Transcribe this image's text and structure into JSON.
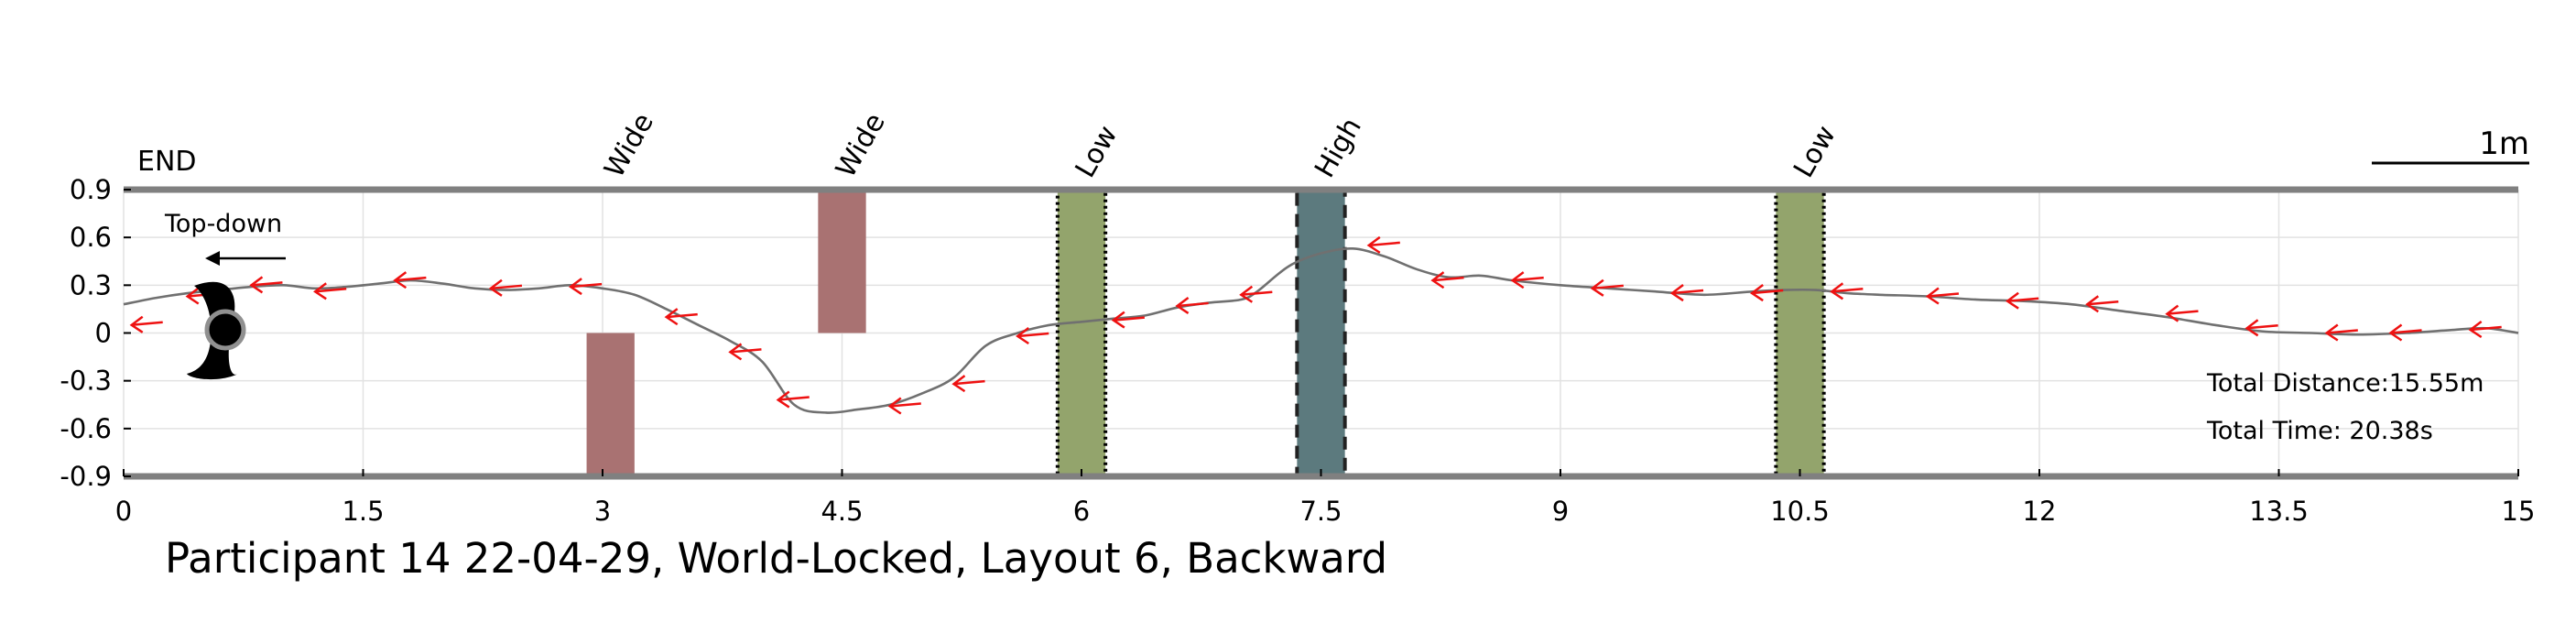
{
  "chart_data": {
    "type": "line",
    "title": "Participant 14 22-04-29, World-Locked, Layout 6, Backward",
    "xlim": [
      0,
      15
    ],
    "ylim": [
      -0.9,
      0.9
    ],
    "xticks": [
      "0",
      "1.5",
      "3",
      "4.5",
      "6",
      "7.5",
      "9",
      "10.5",
      "12",
      "13.5",
      "15"
    ],
    "xtick_values": [
      0,
      1.5,
      3,
      4.5,
      6,
      7.5,
      9,
      10.5,
      12,
      13.5,
      15
    ],
    "yticks": [
      "0.9",
      "0.6",
      "0.3",
      "0",
      "-0.3",
      "-0.6",
      "-0.9"
    ],
    "ytick_values": [
      0.9,
      0.6,
      0.3,
      0,
      -0.3,
      -0.6,
      -0.9
    ],
    "grid": true,
    "end_label": "END",
    "view_label": "Top-down",
    "scale_label": "1m",
    "stats": {
      "distance": "Total Distance:15.55m",
      "time": "Total Time: 20.38s"
    },
    "trajectory": {
      "x": [
        15.0,
        14.8,
        14.6,
        14.3,
        14.0,
        13.7,
        13.4,
        13.1,
        12.8,
        12.5,
        12.2,
        11.9,
        11.6,
        11.3,
        11.0,
        10.8,
        10.6,
        10.4,
        10.2,
        9.9,
        9.6,
        9.3,
        9.0,
        8.7,
        8.5,
        8.3,
        8.1,
        7.9,
        7.7,
        7.5,
        7.3,
        7.1,
        7.0,
        6.8,
        6.6,
        6.4,
        6.2,
        6.0,
        5.8,
        5.6,
        5.4,
        5.2,
        5.0,
        4.8,
        4.6,
        4.4,
        4.2,
        4.0,
        3.8,
        3.6,
        3.4,
        3.2,
        3.0,
        2.8,
        2.6,
        2.4,
        2.2,
        2.0,
        1.8,
        1.6,
        1.4,
        1.2,
        1.0,
        0.8,
        0.6,
        0.4,
        0.2,
        0.0
      ],
      "y": [
        0.0,
        0.03,
        0.02,
        0.0,
        -0.01,
        0.0,
        0.01,
        0.05,
        0.1,
        0.14,
        0.18,
        0.2,
        0.21,
        0.23,
        0.24,
        0.25,
        0.27,
        0.27,
        0.26,
        0.24,
        0.26,
        0.28,
        0.3,
        0.33,
        0.36,
        0.35,
        0.4,
        0.48,
        0.53,
        0.5,
        0.42,
        0.26,
        0.21,
        0.19,
        0.16,
        0.11,
        0.09,
        0.07,
        0.05,
        0.0,
        -0.08,
        -0.28,
        -0.38,
        -0.45,
        -0.48,
        -0.5,
        -0.45,
        -0.18,
        -0.05,
        0.05,
        0.15,
        0.24,
        0.28,
        0.3,
        0.28,
        0.27,
        0.28,
        0.31,
        0.33,
        0.31,
        0.29,
        0.28,
        0.3,
        0.29,
        0.27,
        0.25,
        0.22,
        0.18
      ]
    },
    "arrows": [
      {
        "x": 14.7,
        "y": 0.02
      },
      {
        "x": 14.2,
        "y": 0.0
      },
      {
        "x": 13.8,
        "y": 0.0
      },
      {
        "x": 13.3,
        "y": 0.03
      },
      {
        "x": 12.8,
        "y": 0.12
      },
      {
        "x": 12.3,
        "y": 0.18
      },
      {
        "x": 11.8,
        "y": 0.2
      },
      {
        "x": 11.3,
        "y": 0.23
      },
      {
        "x": 10.7,
        "y": 0.26
      },
      {
        "x": 10.2,
        "y": 0.25
      },
      {
        "x": 9.7,
        "y": 0.25
      },
      {
        "x": 9.2,
        "y": 0.28
      },
      {
        "x": 8.7,
        "y": 0.33
      },
      {
        "x": 8.2,
        "y": 0.33
      },
      {
        "x": 7.8,
        "y": 0.55
      },
      {
        "x": 7.0,
        "y": 0.24
      },
      {
        "x": 6.6,
        "y": 0.17
      },
      {
        "x": 6.2,
        "y": 0.08
      },
      {
        "x": 5.6,
        "y": -0.02
      },
      {
        "x": 5.2,
        "y": -0.32
      },
      {
        "x": 4.8,
        "y": -0.46
      },
      {
        "x": 4.1,
        "y": -0.42
      },
      {
        "x": 3.8,
        "y": -0.12
      },
      {
        "x": 3.4,
        "y": 0.1
      },
      {
        "x": 2.8,
        "y": 0.29
      },
      {
        "x": 2.3,
        "y": 0.28
      },
      {
        "x": 1.7,
        "y": 0.33
      },
      {
        "x": 1.2,
        "y": 0.26
      },
      {
        "x": 0.8,
        "y": 0.3
      },
      {
        "x": 0.4,
        "y": 0.23
      },
      {
        "x": 0.05,
        "y": 0.05
      }
    ],
    "obstacles": [
      {
        "label": "Wide",
        "x0": 2.9,
        "x1": 3.2,
        "y0": -0.9,
        "y1": 0.0,
        "color": "#a97272",
        "border": "none"
      },
      {
        "label": "Wide",
        "x0": 4.35,
        "x1": 4.65,
        "y0": 0.0,
        "y1": 0.9,
        "color": "#a97272",
        "border": "none"
      },
      {
        "label": "Low",
        "x0": 5.85,
        "x1": 6.15,
        "y0": -0.9,
        "y1": 0.9,
        "color": "#93a46c",
        "border": "dotted"
      },
      {
        "label": "High",
        "x0": 7.35,
        "x1": 7.65,
        "y0": -0.9,
        "y1": 0.9,
        "color": "#5c7a7e",
        "border": "dashed"
      },
      {
        "label": "Low",
        "x0": 10.35,
        "x1": 10.65,
        "y0": -0.9,
        "y1": 0.9,
        "color": "#93a46c",
        "border": "dotted"
      }
    ],
    "colors": {
      "trajectory": "#707070",
      "arrows": "#ee1111",
      "frame": "#808080",
      "grid": "#e2e2e2"
    }
  }
}
